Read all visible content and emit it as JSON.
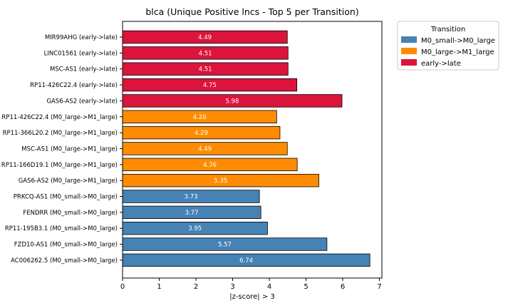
{
  "chart_data": {
    "type": "bar",
    "orientation": "horizontal",
    "title": "blca (Unique Positive lncs - Top 5 per Transition)",
    "xlabel": "|z-score| > 3",
    "ylabel": "",
    "xlim": [
      0,
      7.05
    ],
    "xticks": [
      "0",
      "1",
      "2",
      "3",
      "4",
      "5",
      "6",
      "7"
    ],
    "grid": false,
    "legend": {
      "title": "Transition",
      "placement": "outside-top-right",
      "entries": [
        {
          "label": "M0_small->M0_large",
          "color": "#4682b4"
        },
        {
          "label": "M0_large->M1_large",
          "color": "#ff8c00"
        },
        {
          "label": "early->late",
          "color": "#dc143c"
        }
      ]
    },
    "bars": [
      {
        "label": "MIR99AHG (early->late)",
        "value": 4.49,
        "value_label": "4.49",
        "group": "early->late"
      },
      {
        "label": "LINC01561 (early->late)",
        "value": 4.51,
        "value_label": "4.51",
        "group": "early->late"
      },
      {
        "label": "MSC-AS1 (early->late)",
        "value": 4.51,
        "value_label": "4.51",
        "group": "early->late"
      },
      {
        "label": "RP11-426C22.4 (early->late)",
        "value": 4.75,
        "value_label": "4.75",
        "group": "early->late"
      },
      {
        "label": "GAS6-AS2 (early->late)",
        "value": 5.98,
        "value_label": "5.98",
        "group": "early->late"
      },
      {
        "label": "RP11-426C22.4 (M0_large->M1_large)",
        "value": 4.2,
        "value_label": "4.20",
        "group": "M0_large->M1_large"
      },
      {
        "label": "RP11-366L20.2 (M0_large->M1_large)",
        "value": 4.29,
        "value_label": "4.29",
        "group": "M0_large->M1_large"
      },
      {
        "label": "MSC-AS1 (M0_large->M1_large)",
        "value": 4.49,
        "value_label": "4.49",
        "group": "M0_large->M1_large"
      },
      {
        "label": "RP11-166D19.1 (M0_large->M1_large)",
        "value": 4.76,
        "value_label": "4.76",
        "group": "M0_large->M1_large"
      },
      {
        "label": "GAS6-AS2 (M0_large->M1_large)",
        "value": 5.35,
        "value_label": "5.35",
        "group": "M0_large->M1_large"
      },
      {
        "label": "PRKCQ-AS1 (M0_small->M0_large)",
        "value": 3.73,
        "value_label": "3.73",
        "group": "M0_small->M0_large"
      },
      {
        "label": "FENDRR (M0_small->M0_large)",
        "value": 3.77,
        "value_label": "3.77",
        "group": "M0_small->M0_large"
      },
      {
        "label": "RP11-195B3.1 (M0_small->M0_large)",
        "value": 3.95,
        "value_label": "3.95",
        "group": "M0_small->M0_large"
      },
      {
        "label": "FZD10-AS1 (M0_small->M0_large)",
        "value": 5.57,
        "value_label": "5.57",
        "group": "M0_small->M0_large"
      },
      {
        "label": "AC006262.5 (M0_small->M0_large)",
        "value": 6.74,
        "value_label": "6.74",
        "group": "M0_small->M0_large"
      }
    ]
  }
}
